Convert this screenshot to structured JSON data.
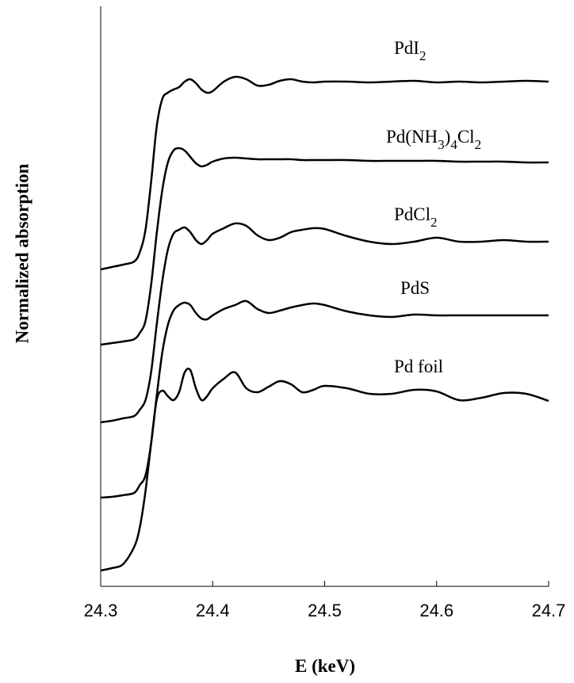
{
  "chart_data": {
    "type": "line",
    "x_label": "E (keV)",
    "y_label": "Normalized absorption",
    "xlim": [
      24.3,
      24.7
    ],
    "xticks": [
      24.3,
      24.4,
      24.5,
      24.6,
      24.7
    ],
    "ylim": [
      0,
      7.32
    ],
    "x": [
      24.3,
      24.31,
      24.32,
      24.33,
      24.335,
      24.34,
      24.345,
      24.35,
      24.355,
      24.36,
      24.365,
      24.37,
      24.375,
      24.38,
      24.385,
      24.39,
      24.395,
      24.4,
      24.41,
      24.42,
      24.43,
      24.44,
      24.45,
      24.46,
      24.47,
      24.48,
      24.49,
      24.5,
      24.52,
      24.54,
      24.56,
      24.58,
      24.6,
      24.62,
      24.64,
      24.66,
      24.68,
      24.7
    ],
    "series": [
      {
        "name": "PdI2",
        "color": "#000000",
        "values": [
          4.0,
          4.03,
          4.06,
          4.1,
          4.22,
          4.5,
          5.1,
          5.8,
          6.15,
          6.23,
          6.27,
          6.3,
          6.37,
          6.4,
          6.35,
          6.27,
          6.23,
          6.25,
          6.37,
          6.43,
          6.4,
          6.32,
          6.33,
          6.38,
          6.4,
          6.37,
          6.36,
          6.37,
          6.37,
          6.36,
          6.37,
          6.38,
          6.36,
          6.37,
          6.36,
          6.37,
          6.38,
          6.37
        ]
      },
      {
        "name": "Pd(NH3)4Cl2",
        "color": "#000000",
        "values": [
          3.05,
          3.07,
          3.09,
          3.12,
          3.2,
          3.35,
          3.8,
          4.45,
          5.0,
          5.35,
          5.5,
          5.53,
          5.5,
          5.42,
          5.34,
          5.3,
          5.32,
          5.36,
          5.4,
          5.41,
          5.4,
          5.39,
          5.39,
          5.39,
          5.39,
          5.38,
          5.38,
          5.38,
          5.38,
          5.37,
          5.37,
          5.37,
          5.37,
          5.36,
          5.36,
          5.36,
          5.35,
          5.35
        ]
      },
      {
        "name": "PdCl2",
        "color": "#000000",
        "values": [
          2.07,
          2.09,
          2.12,
          2.15,
          2.23,
          2.35,
          2.7,
          3.3,
          3.85,
          4.25,
          4.45,
          4.5,
          4.53,
          4.47,
          4.37,
          4.32,
          4.37,
          4.45,
          4.52,
          4.58,
          4.55,
          4.43,
          4.37,
          4.4,
          4.47,
          4.5,
          4.52,
          4.51,
          4.42,
          4.35,
          4.32,
          4.35,
          4.4,
          4.35,
          4.35,
          4.37,
          4.35,
          4.35
        ]
      },
      {
        "name": "PdS",
        "color": "#000000",
        "values": [
          1.12,
          1.13,
          1.15,
          1.18,
          1.28,
          1.4,
          1.8,
          2.4,
          2.95,
          3.3,
          3.48,
          3.55,
          3.58,
          3.55,
          3.45,
          3.38,
          3.37,
          3.42,
          3.5,
          3.55,
          3.6,
          3.5,
          3.45,
          3.48,
          3.52,
          3.55,
          3.57,
          3.55,
          3.47,
          3.42,
          3.4,
          3.43,
          3.42,
          3.42,
          3.42,
          3.42,
          3.42,
          3.42
        ]
      },
      {
        "name": "Pd foil",
        "color": "#000000",
        "values": [
          0.2,
          0.23,
          0.28,
          0.5,
          0.75,
          1.2,
          1.8,
          2.35,
          2.47,
          2.4,
          2.35,
          2.45,
          2.7,
          2.73,
          2.5,
          2.35,
          2.4,
          2.5,
          2.62,
          2.7,
          2.5,
          2.45,
          2.52,
          2.59,
          2.55,
          2.45,
          2.48,
          2.53,
          2.5,
          2.43,
          2.43,
          2.48,
          2.46,
          2.35,
          2.38,
          2.44,
          2.43,
          2.34
        ]
      }
    ]
  }
}
